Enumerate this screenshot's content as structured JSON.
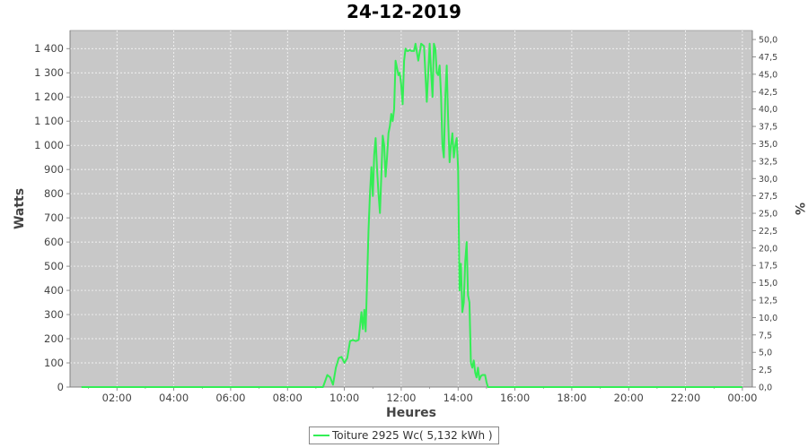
{
  "chart_data": {
    "type": "line",
    "title": "24-12-2019",
    "xlabel": "Heures",
    "ylabel": "Watts",
    "y2label": "%",
    "xlim": [
      0.35,
      24.35
    ],
    "ylim": [
      0,
      1475
    ],
    "y2lim": [
      0,
      51.3
    ],
    "xticks": [
      "02:00",
      "04:00",
      "06:00",
      "08:00",
      "10:00",
      "12:00",
      "14:00",
      "16:00",
      "18:00",
      "20:00",
      "22:00",
      "00:00"
    ],
    "yticks": [
      "0",
      "100",
      "200",
      "300",
      "400",
      "500",
      "600",
      "700",
      "800",
      "900",
      "1 000",
      "1 100",
      "1 200",
      "1 300",
      "1 400"
    ],
    "y2ticks": [
      "0,0",
      "2,5",
      "5,0",
      "7,5",
      "10,0",
      "12,5",
      "15,0",
      "17,5",
      "20,0",
      "22,5",
      "25,0",
      "27,5",
      "30,0",
      "32,5",
      "35,0",
      "37,5",
      "40,0",
      "42,5",
      "45,0",
      "47,5",
      "50,0"
    ],
    "grid": true,
    "background": "#c8c8c8",
    "line_color": "#33ee55",
    "legend_position": "bottom",
    "series": [
      {
        "name": "Toiture 2925 Wc( 5,132 kWh )",
        "x": [
          0.75,
          9.25,
          9.4,
          9.5,
          9.6,
          9.7,
          9.8,
          9.9,
          10.0,
          10.1,
          10.2,
          10.3,
          10.4,
          10.5,
          10.55,
          10.6,
          10.65,
          10.7,
          10.75,
          10.85,
          10.9,
          10.95,
          11.0,
          11.05,
          11.1,
          11.15,
          11.2,
          11.25,
          11.3,
          11.35,
          11.4,
          11.45,
          11.5,
          11.55,
          11.6,
          11.65,
          11.7,
          11.75,
          11.8,
          11.85,
          11.9,
          11.95,
          12.0,
          12.05,
          12.1,
          12.15,
          12.2,
          12.25,
          12.3,
          12.35,
          12.4,
          12.45,
          12.5,
          12.6,
          12.7,
          12.8,
          12.9,
          13.0,
          13.05,
          13.1,
          13.15,
          13.2,
          13.25,
          13.3,
          13.35,
          13.4,
          13.45,
          13.5,
          13.55,
          13.6,
          13.65,
          13.7,
          13.75,
          13.8,
          13.85,
          13.9,
          13.95,
          14.0,
          14.05,
          14.1,
          14.15,
          14.2,
          14.25,
          14.3,
          14.35,
          14.4,
          14.45,
          14.5,
          14.55,
          14.6,
          14.65,
          14.7,
          14.75,
          14.8,
          14.85,
          14.9,
          14.95,
          15.0,
          15.05,
          15.1,
          15.15,
          15.2,
          15.25,
          15.3,
          15.35,
          15.4,
          15.45,
          15.5,
          15.55,
          15.6,
          15.65,
          15.7,
          15.75,
          15.8,
          15.85,
          15.9,
          15.95,
          16.0,
          16.2,
          16.3,
          16.4,
          16.5,
          16.55,
          16.6,
          24.0
        ],
        "y": [
          0,
          0,
          50,
          40,
          10,
          80,
          120,
          125,
          100,
          120,
          190,
          195,
          190,
          195,
          250,
          310,
          240,
          320,
          230,
          650,
          800,
          910,
          790,
          960,
          1030,
          900,
          800,
          720,
          880,
          1040,
          1000,
          870,
          950,
          1050,
          1080,
          1130,
          1100,
          1150,
          1350,
          1320,
          1290,
          1300,
          1250,
          1170,
          1350,
          1400,
          1390,
          1390,
          1395,
          1390,
          1390,
          1390,
          1420,
          1350,
          1420,
          1410,
          1180,
          1420,
          1300,
          1200,
          1420,
          1400,
          1300,
          1290,
          1330,
          1200,
          1000,
          950,
          1200,
          1330,
          1100,
          930,
          1000,
          1050,
          950,
          1000,
          1030,
          900,
          400,
          510,
          310,
          350,
          520,
          600,
          380,
          350,
          100,
          80,
          110,
          60,
          40,
          80,
          30,
          45,
          50,
          50,
          50,
          20,
          0,
          0,
          0,
          0,
          0,
          0,
          0,
          0,
          0,
          0,
          0,
          0,
          0,
          0,
          0,
          0,
          0,
          0,
          0,
          0,
          0,
          0,
          0,
          0,
          0,
          0,
          0
        ]
      }
    ]
  }
}
